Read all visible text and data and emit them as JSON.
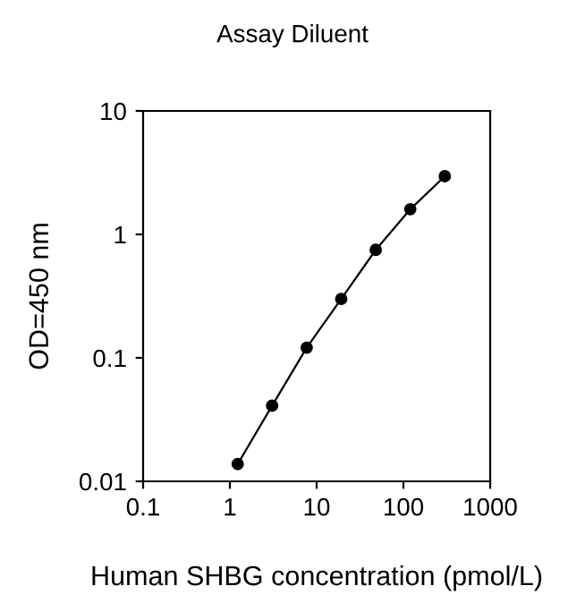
{
  "chart_data": {
    "type": "line",
    "title": "Assay Diluent",
    "xlabel": "Human SHBG concentration (pmol/L)",
    "ylabel": "OD=450 nm",
    "x": [
      1.23,
      3.07,
      7.68,
      19.2,
      48,
      120,
      300
    ],
    "series": [
      {
        "color": "#000000",
        "values": [
          0.0138,
          0.041,
          0.121,
          0.3,
          0.75,
          1.6,
          2.96
        ]
      }
    ],
    "log": "xy",
    "xlim": [
      0.1,
      1000
    ],
    "ylim": [
      0.01,
      10
    ],
    "xticks": [
      0.1,
      1,
      10,
      100,
      1000
    ],
    "yticks": [
      0.01,
      0.1,
      1,
      10
    ],
    "marker": "circle",
    "line_style": "solid",
    "grid": false,
    "legend": false
  }
}
